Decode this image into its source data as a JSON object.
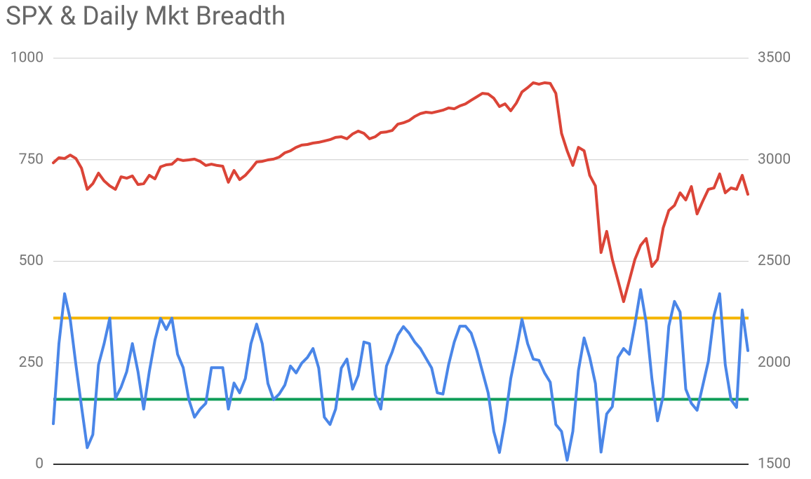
{
  "chart_data": {
    "type": "line",
    "title": "SPX & Daily Mkt Breadth",
    "ylim": [
      0,
      1000
    ],
    "yticks": [
      0,
      250,
      500,
      750,
      1000
    ],
    "y2lim": [
      1500,
      3500
    ],
    "y2ticks": [
      1500,
      2000,
      2500,
      3000,
      3500
    ],
    "grid": true,
    "reference_lines": [
      {
        "value": 360,
        "color": "#f4b400"
      },
      {
        "value": 160,
        "color": "#0f9d58"
      }
    ],
    "series": [
      {
        "color": "#4a86e8",
        "values": [
          100,
          297,
          420,
          357,
          245,
          142,
          41,
          73,
          245,
          297,
          360,
          162,
          190,
          228,
          297,
          228,
          136,
          228,
          306,
          359,
          332,
          360,
          271,
          238,
          159,
          116,
          136,
          150,
          238,
          238,
          238,
          136,
          200,
          176,
          211,
          297,
          345,
          297,
          199,
          159,
          173,
          195,
          242,
          225,
          249,
          263,
          285,
          237,
          116,
          98,
          136,
          237,
          259,
          185,
          219,
          301,
          297,
          171,
          136,
          242,
          276,
          318,
          339,
          323,
          301,
          285,
          261,
          237,
          176,
          173,
          245,
          301,
          340,
          340,
          323,
          280,
          228,
          176,
          81,
          29,
          107,
          211,
          280,
          357,
          297,
          259,
          256,
          225,
          202,
          98,
          81,
          10,
          81,
          231,
          311,
          263,
          199,
          30,
          124,
          142,
          263,
          285,
          271,
          345,
          430,
          349,
          211,
          107,
          168,
          340,
          401,
          375,
          185,
          150,
          133,
          193,
          254,
          366,
          420,
          245,
          159,
          140,
          380,
          280
        ]
      },
      {
        "color": "#db4437",
        "axis": "y2",
        "values": [
          2985,
          3010,
          3006,
          3023,
          3006,
          2958,
          2854,
          2882,
          2934,
          2896,
          2871,
          2854,
          2916,
          2909,
          2920,
          2878,
          2882,
          2923,
          2906,
          2965,
          2975,
          2978,
          3003,
          2996,
          2999,
          3003,
          2992,
          2972,
          2978,
          2972,
          2968,
          2889,
          2947,
          2902,
          2923,
          2954,
          2989,
          2992,
          2999,
          3003,
          3013,
          3034,
          3044,
          3061,
          3072,
          3075,
          3082,
          3086,
          3092,
          3099,
          3110,
          3113,
          3103,
          3127,
          3141,
          3130,
          3103,
          3113,
          3134,
          3137,
          3144,
          3175,
          3182,
          3193,
          3213,
          3227,
          3234,
          3231,
          3237,
          3244,
          3255,
          3251,
          3265,
          3275,
          3293,
          3310,
          3327,
          3324,
          3303,
          3262,
          3275,
          3241,
          3279,
          3334,
          3355,
          3379,
          3372,
          3379,
          3376,
          3327,
          3130,
          3044,
          2972,
          3061,
          3044,
          2923,
          2871,
          2543,
          2647,
          2509,
          2405,
          2301,
          2405,
          2509,
          2578,
          2612,
          2474,
          2509,
          2664,
          2750,
          2775,
          2837,
          2802,
          2868,
          2733,
          2795,
          2854,
          2861,
          2930,
          2837,
          2861,
          2854,
          2923,
          2830
        ]
      }
    ]
  }
}
